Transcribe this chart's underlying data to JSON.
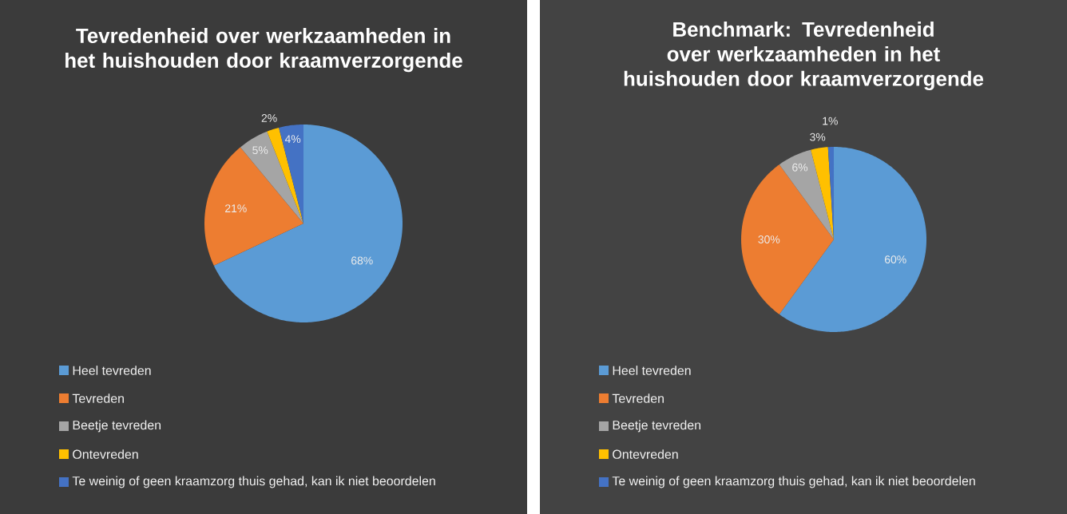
{
  "chart_data": [
    {
      "type": "pie",
      "title": "Tevredenheid over werkzaamheden in het huishouden door kraamverzorgende",
      "categories": [
        "Heel tevreden",
        "Tevreden",
        "Beetje tevreden",
        "Ontevreden",
        "Te weinig of geen kraamzorg thuis gehad, kan ik niet beoordelen"
      ],
      "values": [
        68,
        21,
        5,
        2,
        4
      ],
      "value_labels": [
        "68%",
        "21%",
        "5%",
        "2%",
        "4%"
      ],
      "colors": [
        "#5b9bd5",
        "#ed7d31",
        "#a5a5a5",
        "#ffc000",
        "#4472c4"
      ],
      "legend": "bottom"
    },
    {
      "type": "pie",
      "title": "Benchmark: Tevredenheid over werkzaamheden in het huishouden door kraamverzorgende",
      "categories": [
        "Heel tevreden",
        "Tevreden",
        "Beetje tevreden",
        "Ontevreden",
        "Te weinig of geen kraamzorg thuis gehad, kan ik niet beoordelen"
      ],
      "values": [
        60,
        30,
        6,
        3,
        1
      ],
      "value_labels": [
        "60%",
        "30%",
        "6%",
        "3%",
        "1%"
      ],
      "colors": [
        "#5b9bd5",
        "#ed7d31",
        "#a5a5a5",
        "#ffc000",
        "#4472c4"
      ],
      "legend": "bottom"
    }
  ]
}
